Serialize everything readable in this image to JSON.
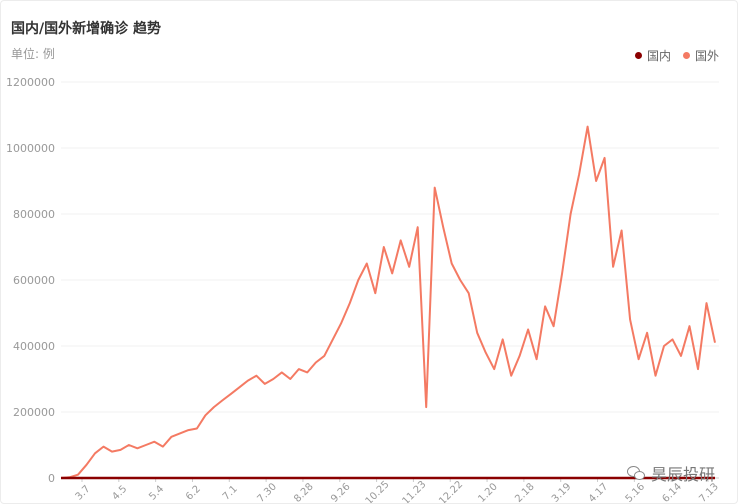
{
  "chart_data": {
    "type": "line",
    "title": "国内/国外新增确诊 趋势",
    "unit_label": "单位: 例",
    "ylim": [
      0,
      1200000
    ],
    "yticks": [
      0,
      200000,
      400000,
      600000,
      800000,
      1000000,
      1200000
    ],
    "ytick_labels": [
      "0",
      "200000",
      "400000",
      "600000",
      "800000",
      "1000000",
      "1200000"
    ],
    "x_tick_labels": [
      "3.7",
      "4.5",
      "5.4",
      "6.2",
      "7.1",
      "7.30",
      "8.28",
      "9.26",
      "10.25",
      "11.23",
      "12.22",
      "1.20",
      "2.18",
      "3.19",
      "4.17",
      "5.16",
      "6.14",
      "7.13"
    ],
    "grid": true,
    "legend_position": "top-right",
    "series": [
      {
        "name": "国内",
        "color": "#8b0000",
        "values": [
          0,
          0,
          0,
          0,
          0,
          0,
          0,
          0,
          0,
          0,
          0,
          0,
          0,
          0,
          0,
          0,
          0,
          0,
          0,
          0,
          0,
          0,
          0,
          0,
          0,
          0,
          0,
          0,
          0,
          0,
          0,
          0,
          0,
          0,
          0,
          0,
          0,
          0,
          0,
          0,
          0,
          0,
          0,
          0,
          0,
          0,
          0,
          0,
          0,
          0,
          0,
          0,
          0,
          0,
          0,
          0,
          0,
          0,
          0,
          0,
          0,
          0,
          0,
          0,
          0,
          0,
          0,
          0,
          0,
          0,
          0,
          0,
          0
        ]
      },
      {
        "name": "国外",
        "color": "#f47a63",
        "values": [
          0,
          2000,
          10000,
          40000,
          75000,
          95000,
          80000,
          85000,
          100000,
          90000,
          100000,
          110000,
          95000,
          125000,
          135000,
          145000,
          150000,
          190000,
          215000,
          235000,
          255000,
          275000,
          295000,
          310000,
          285000,
          300000,
          320000,
          300000,
          330000,
          320000,
          350000,
          370000,
          420000,
          470000,
          530000,
          600000,
          650000,
          560000,
          700000,
          620000,
          720000,
          640000,
          760000,
          215000,
          880000,
          760000,
          650000,
          600000,
          560000,
          440000,
          380000,
          330000,
          420000,
          310000,
          370000,
          450000,
          360000,
          520000,
          460000,
          620000,
          800000,
          920000,
          1065000,
          900000,
          970000,
          640000,
          750000,
          480000,
          360000,
          440000,
          310000,
          400000,
          420000,
          370000,
          460000,
          330000,
          530000,
          410000
        ]
      }
    ]
  },
  "watermark": {
    "text": "昊辰投研",
    "icon": "wechat-icon"
  }
}
